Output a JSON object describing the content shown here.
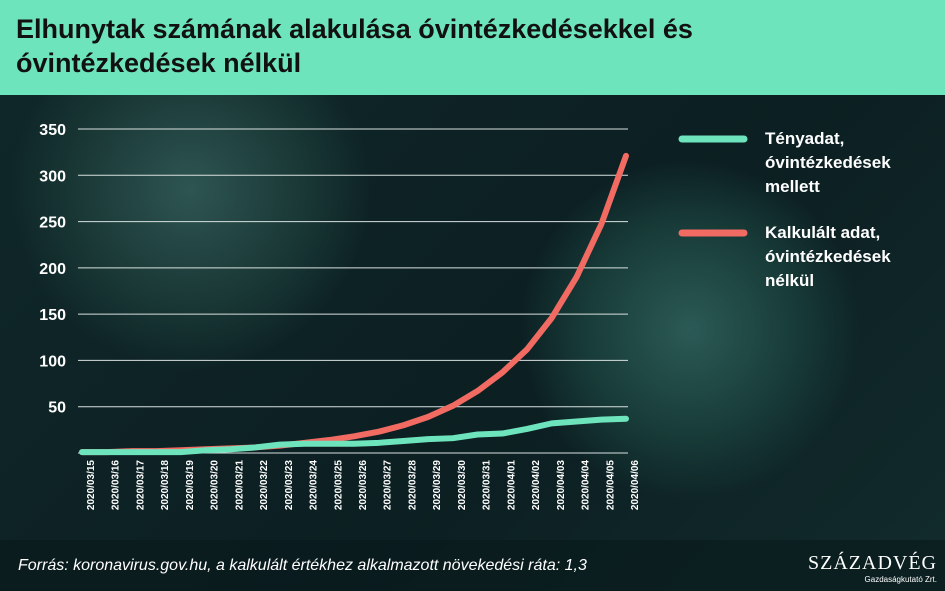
{
  "chart_data": {
    "type": "line",
    "title": "Elhunytak számának alakulása óvintézkedésekkel és óvintézkedések nélkül",
    "categories": [
      "2020/03/15",
      "2020/03/16",
      "2020/03/17",
      "2020/03/18",
      "2020/03/19",
      "2020/03/20",
      "2020/03/21",
      "2020/03/22",
      "2020/03/23",
      "2020/03/24",
      "2020/03/25",
      "2020/03/26",
      "2020/03/27",
      "2020/03/28",
      "2020/03/29",
      "2020/03/30",
      "2020/03/31",
      "2020/04/01",
      "2020/04/02",
      "2020/04/03",
      "2020/04/04",
      "2020/04/05",
      "2020/04/06"
    ],
    "series": [
      {
        "name": "Tényadat, óvintézkedések mellett",
        "color": "#6ee4bd",
        "values": [
          1,
          1,
          1,
          1,
          1,
          3,
          4,
          6,
          9,
          10,
          10,
          10,
          11,
          13,
          15,
          16,
          20,
          21,
          26,
          32,
          34,
          36,
          37
        ]
      },
      {
        "name": "Kalkulált adat, óvintézkedések nélkül",
        "color": "#f26b63",
        "values": [
          1,
          1,
          2,
          2,
          3,
          4,
          5,
          6,
          8,
          11,
          14,
          18,
          23,
          30,
          39,
          51,
          67,
          87,
          112,
          146,
          190,
          247,
          321
        ]
      }
    ],
    "ylim": [
      0,
      350
    ],
    "yticks": [
      50,
      100,
      150,
      200,
      250,
      300,
      350
    ],
    "grid": true,
    "source": "Forrás: koronavirus.gov.hu, a kalkulált értékhez alkalmazott növekedési ráta: 1,3",
    "logo": {
      "name": "SZÁZADVÉG",
      "sub": "Gazdaságkutató Zrt."
    }
  }
}
